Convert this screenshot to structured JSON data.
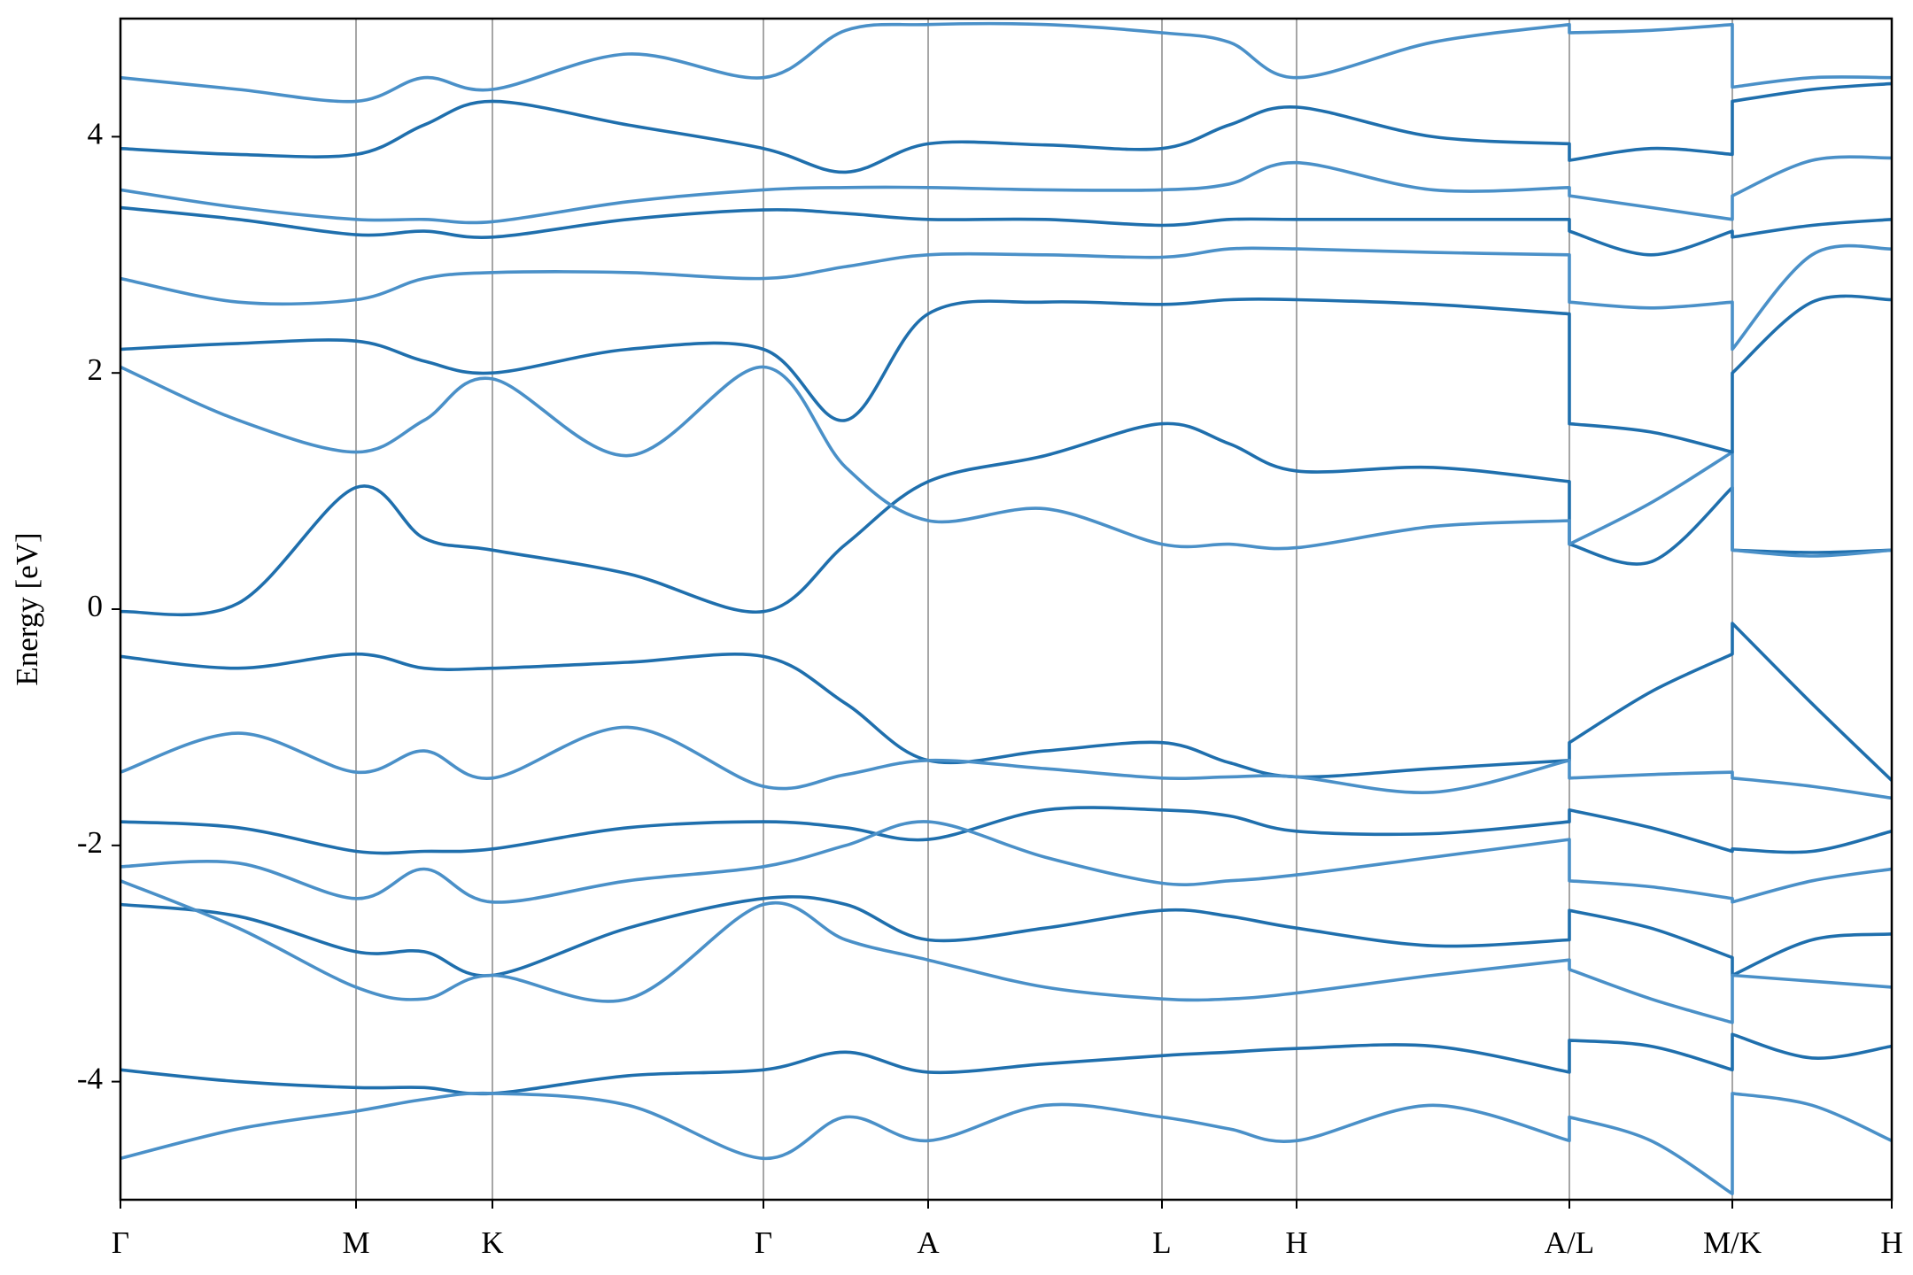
{
  "chart_data": {
    "type": "line",
    "ylabel": "Energy [eV]",
    "ylim": [
      -5,
      5
    ],
    "yticks": [
      -4,
      -2,
      0,
      2,
      4
    ],
    "xlim": [
      0,
      10
    ],
    "xticks": [
      {
        "value": 0,
        "label": "Γ"
      },
      {
        "value": 1.33,
        "label": "M"
      },
      {
        "value": 2.1,
        "label": "K"
      },
      {
        "value": 3.63,
        "label": "Γ"
      },
      {
        "value": 4.56,
        "label": "A"
      },
      {
        "value": 5.88,
        "label": "L"
      },
      {
        "value": 6.64,
        "label": "H"
      },
      {
        "value": 8.18,
        "label": "A/L"
      },
      {
        "value": 9.1,
        "label": "M/K"
      },
      {
        "value": 10,
        "label": "H"
      }
    ],
    "grid": true,
    "x": [
      0,
      0.665,
      1.33,
      1.715,
      2.1,
      2.865,
      3.63,
      4.095,
      4.56,
      5.22,
      5.88,
      6.26,
      6.64,
      7.41,
      8.18,
      8.18,
      8.64,
      9.1,
      9.1,
      9.55,
      10
    ],
    "series": [
      {
        "color": "#1f6fad",
        "values": [
          -0.02,
          0.05,
          1.03,
          0.6,
          0.5,
          0.3,
          -0.02,
          0.55,
          1.08,
          1.3,
          1.57,
          1.4,
          1.17,
          1.2,
          1.08,
          0.55,
          0.4,
          1.03,
          0.5,
          0.48,
          0.5
        ]
      },
      {
        "color": "#4a90c8",
        "values": [
          2.05,
          1.6,
          1.33,
          1.6,
          1.95,
          1.3,
          2.05,
          1.2,
          0.75,
          0.85,
          0.55,
          0.55,
          0.52,
          0.7,
          0.75,
          0.55,
          0.9,
          1.33,
          0.5,
          0.45,
          0.5
        ]
      },
      {
        "color": "#1f6fad",
        "values": [
          2.2,
          2.25,
          2.27,
          2.1,
          2.0,
          2.2,
          2.2,
          1.6,
          2.5,
          2.6,
          2.58,
          2.62,
          2.62,
          2.58,
          2.5,
          1.57,
          1.5,
          1.33,
          2.0,
          2.6,
          2.62
        ]
      },
      {
        "color": "#4a90c8",
        "values": [
          2.8,
          2.6,
          2.62,
          2.8,
          2.85,
          2.85,
          2.8,
          2.9,
          3.0,
          3.0,
          2.98,
          3.05,
          3.05,
          3.02,
          3.0,
          2.6,
          2.55,
          2.6,
          2.2,
          3.0,
          3.05
        ]
      },
      {
        "color": "#1f6fad",
        "values": [
          3.4,
          3.3,
          3.17,
          3.2,
          3.15,
          3.3,
          3.38,
          3.35,
          3.3,
          3.3,
          3.25,
          3.3,
          3.3,
          3.3,
          3.3,
          3.2,
          3.0,
          3.2,
          3.15,
          3.25,
          3.3
        ]
      },
      {
        "color": "#4a90c8",
        "values": [
          3.55,
          3.4,
          3.3,
          3.3,
          3.28,
          3.45,
          3.55,
          3.57,
          3.57,
          3.55,
          3.55,
          3.6,
          3.78,
          3.55,
          3.57,
          3.5,
          3.4,
          3.3,
          3.5,
          3.8,
          3.82
        ]
      },
      {
        "color": "#1f6fad",
        "values": [
          3.9,
          3.85,
          3.85,
          4.1,
          4.3,
          4.1,
          3.9,
          3.7,
          3.94,
          3.93,
          3.9,
          4.1,
          4.25,
          4.0,
          3.94,
          3.8,
          3.9,
          3.85,
          4.3,
          4.4,
          4.45
        ]
      },
      {
        "color": "#4a90c8",
        "values": [
          4.5,
          4.4,
          4.3,
          4.5,
          4.4,
          4.7,
          4.5,
          4.9,
          4.95,
          4.95,
          4.88,
          4.8,
          4.5,
          4.8,
          4.95,
          4.88,
          4.9,
          4.95,
          4.42,
          4.5,
          4.5
        ]
      },
      {
        "color": "#1f6fad",
        "values": [
          -0.4,
          -0.5,
          -0.38,
          -0.5,
          -0.5,
          -0.45,
          -0.4,
          -0.8,
          -1.28,
          -1.2,
          -1.13,
          -1.3,
          -1.42,
          -1.35,
          -1.28,
          -1.13,
          -0.7,
          -0.38,
          -0.12,
          -0.8,
          -1.45
        ]
      },
      {
        "color": "#4a90c8",
        "values": [
          -1.38,
          -1.05,
          -1.38,
          -1.2,
          -1.43,
          -1.0,
          -1.5,
          -1.4,
          -1.28,
          -1.35,
          -1.43,
          -1.42,
          -1.42,
          -1.55,
          -1.28,
          -1.43,
          -1.4,
          -1.38,
          -1.43,
          -1.5,
          -1.6
        ]
      },
      {
        "color": "#1f6fad",
        "values": [
          -1.8,
          -1.85,
          -2.05,
          -2.05,
          -2.03,
          -1.85,
          -1.8,
          -1.85,
          -1.95,
          -1.7,
          -1.7,
          -1.75,
          -1.88,
          -1.9,
          -1.8,
          -1.7,
          -1.85,
          -2.05,
          -2.03,
          -2.05,
          -1.88
        ]
      },
      {
        "color": "#4a90c8",
        "values": [
          -2.18,
          -2.15,
          -2.45,
          -2.2,
          -2.48,
          -2.3,
          -2.18,
          -2.0,
          -1.8,
          -2.1,
          -2.32,
          -2.3,
          -2.25,
          -2.1,
          -1.95,
          -2.3,
          -2.35,
          -2.45,
          -2.48,
          -2.3,
          -2.2
        ]
      },
      {
        "color": "#1f6fad",
        "values": [
          -2.5,
          -2.6,
          -2.9,
          -2.9,
          -3.1,
          -2.7,
          -2.45,
          -2.5,
          -2.8,
          -2.7,
          -2.55,
          -2.6,
          -2.7,
          -2.85,
          -2.8,
          -2.55,
          -2.7,
          -2.95,
          -3.1,
          -2.8,
          -2.75
        ]
      },
      {
        "color": "#4a90c8",
        "values": [
          -2.3,
          -2.7,
          -3.2,
          -3.3,
          -3.1,
          -3.3,
          -2.5,
          -2.8,
          -2.97,
          -3.2,
          -3.3,
          -3.3,
          -3.25,
          -3.1,
          -2.97,
          -3.05,
          -3.3,
          -3.5,
          -3.1,
          -3.15,
          -3.2
        ]
      },
      {
        "color": "#1f6fad",
        "values": [
          -3.9,
          -4.0,
          -4.05,
          -4.05,
          -4.1,
          -3.95,
          -3.9,
          -3.75,
          -3.92,
          -3.85,
          -3.78,
          -3.75,
          -3.72,
          -3.7,
          -3.92,
          -3.65,
          -3.7,
          -3.9,
          -3.6,
          -3.8,
          -3.7
        ]
      },
      {
        "color": "#4a90c8",
        "values": [
          -4.65,
          -4.4,
          -4.25,
          -4.15,
          -4.1,
          -4.2,
          -4.65,
          -4.3,
          -4.5,
          -4.2,
          -4.3,
          -4.4,
          -4.5,
          -4.2,
          -4.5,
          -4.3,
          -4.5,
          -4.95,
          -4.1,
          -4.2,
          -4.5
        ]
      }
    ]
  }
}
